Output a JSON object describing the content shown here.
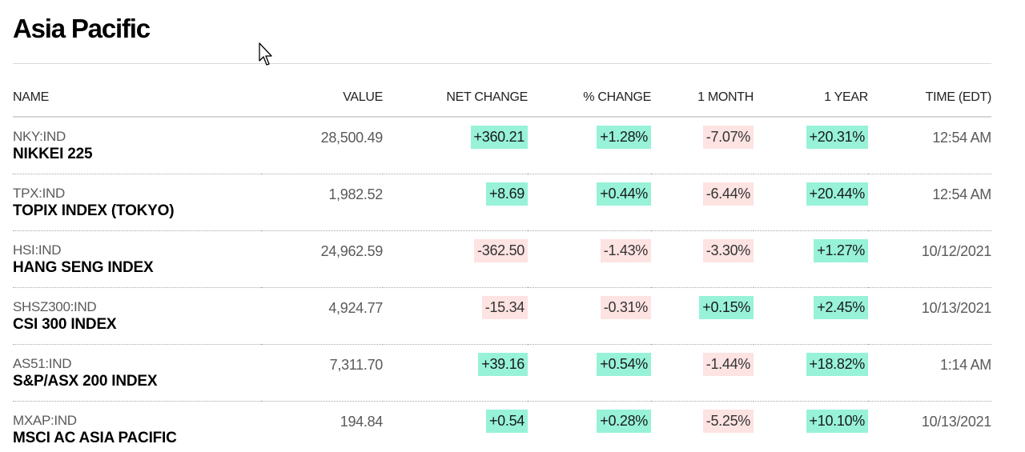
{
  "page": {
    "title": "Asia Pacific"
  },
  "colors": {
    "positive_bg": "#97f2d8",
    "negative_bg": "#fde3e2"
  },
  "table": {
    "headers": {
      "name": "NAME",
      "value": "VALUE",
      "net_change": "NET CHANGE",
      "pct_change": "% CHANGE",
      "one_month": "1 MONTH",
      "one_year": "1 YEAR",
      "time": "TIME (EDT)"
    },
    "rows": [
      {
        "ticker": "NKY:IND",
        "name": "NIKKEI 225",
        "value": "28,500.49",
        "net_change": "+360.21",
        "pct_change": "+1.28%",
        "one_month": "-7.07%",
        "one_year": "+20.31%",
        "time": "12:54 AM"
      },
      {
        "ticker": "TPX:IND",
        "name": "TOPIX INDEX (TOKYO)",
        "value": "1,982.52",
        "net_change": "+8.69",
        "pct_change": "+0.44%",
        "one_month": "-6.44%",
        "one_year": "+20.44%",
        "time": "12:54 AM"
      },
      {
        "ticker": "HSI:IND",
        "name": "HANG SENG INDEX",
        "value": "24,962.59",
        "net_change": "-362.50",
        "pct_change": "-1.43%",
        "one_month": "-3.30%",
        "one_year": "+1.27%",
        "time": "10/12/2021"
      },
      {
        "ticker": "SHSZ300:IND",
        "name": "CSI 300 INDEX",
        "value": "4,924.77",
        "net_change": "-15.34",
        "pct_change": "-0.31%",
        "one_month": "+0.15%",
        "one_year": "+2.45%",
        "time": "10/13/2021"
      },
      {
        "ticker": "AS51:IND",
        "name": "S&P/ASX 200 INDEX",
        "value": "7,311.70",
        "net_change": "+39.16",
        "pct_change": "+0.54%",
        "one_month": "-1.44%",
        "one_year": "+18.82%",
        "time": "1:14 AM"
      },
      {
        "ticker": "MXAP:IND",
        "name": "MSCI AC ASIA PACIFIC",
        "value": "194.84",
        "net_change": "+0.54",
        "pct_change": "+0.28%",
        "one_month": "-5.25%",
        "one_year": "+10.10%",
        "time": "10/13/2021"
      }
    ]
  }
}
